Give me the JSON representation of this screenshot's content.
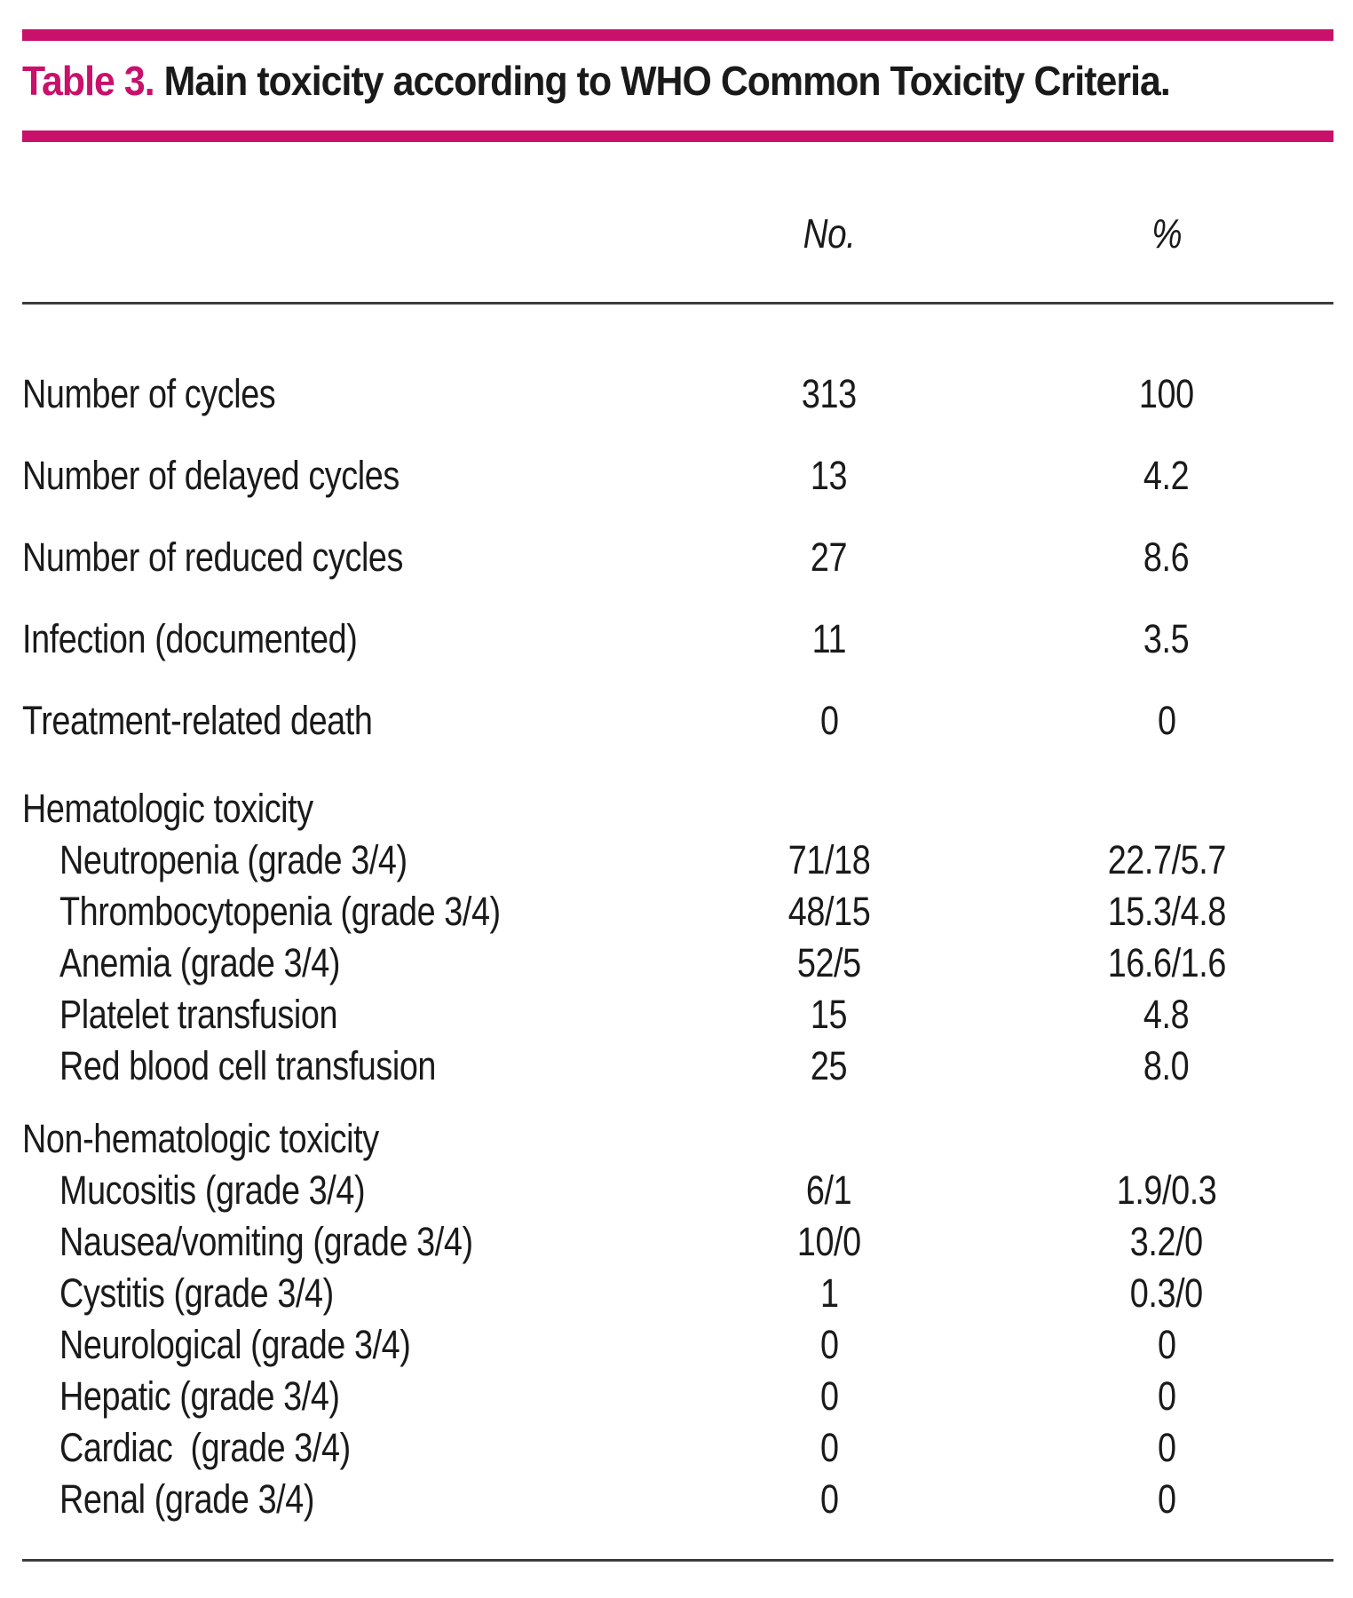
{
  "colors": {
    "accent": "#c9106b",
    "rule": "#3c3c3c",
    "text": "#1a1a1a"
  },
  "title": {
    "label": "Table 3.",
    "text": " Main toxicity according to WHO Common Toxicity Criteria."
  },
  "columns": {
    "no": "No.",
    "pct": "%"
  },
  "rows": [
    {
      "type": "main",
      "label": "Number of cycles",
      "no": "313",
      "pct": "100"
    },
    {
      "type": "main",
      "label": "Number of delayed cycles",
      "no": "13",
      "pct": "4.2"
    },
    {
      "type": "main",
      "label": "Number of reduced cycles",
      "no": "27",
      "pct": "8.6"
    },
    {
      "type": "main",
      "label": "Infection (documented)",
      "no": "11",
      "pct": "3.5"
    },
    {
      "type": "main",
      "label": "Treatment-related death",
      "no": "0",
      "pct": "0"
    },
    {
      "type": "section",
      "label": "Hematologic toxicity",
      "no": "",
      "pct": ""
    },
    {
      "type": "sub",
      "label": "Neutropenia (grade 3/4)",
      "no": "71/18",
      "pct": "22.7/5.7"
    },
    {
      "type": "sub",
      "label": "Thrombocytopenia (grade 3/4)",
      "no": "48/15",
      "pct": "15.3/4.8"
    },
    {
      "type": "sub",
      "label": "Anemia (grade 3/4)",
      "no": "52/5",
      "pct": "16.6/1.6"
    },
    {
      "type": "sub",
      "label": "Platelet transfusion",
      "no": "15",
      "pct": "4.8"
    },
    {
      "type": "sub",
      "label": "Red blood cell transfusion",
      "no": "25",
      "pct": "8.0"
    },
    {
      "type": "section",
      "label": "Non-hematologic toxicity",
      "no": "",
      "pct": ""
    },
    {
      "type": "sub",
      "label": "Mucositis (grade 3/4)",
      "no": "6/1",
      "pct": "1.9/0.3"
    },
    {
      "type": "sub",
      "label": "Nausea/vomiting (grade 3/4)",
      "no": "10/0",
      "pct": "3.2/0"
    },
    {
      "type": "sub",
      "label": "Cystitis (grade 3/4)",
      "no": "1",
      "pct": "0.3/0"
    },
    {
      "type": "sub",
      "label": "Neurological (grade 3/4)",
      "no": "0",
      "pct": "0"
    },
    {
      "type": "sub",
      "label": "Hepatic (grade 3/4)",
      "no": "0",
      "pct": "0"
    },
    {
      "type": "sub",
      "label": "Cardiac  (grade 3/4)",
      "no": "0",
      "pct": "0"
    },
    {
      "type": "sub",
      "label": "Renal (grade 3/4)",
      "no": "0",
      "pct": "0"
    }
  ]
}
